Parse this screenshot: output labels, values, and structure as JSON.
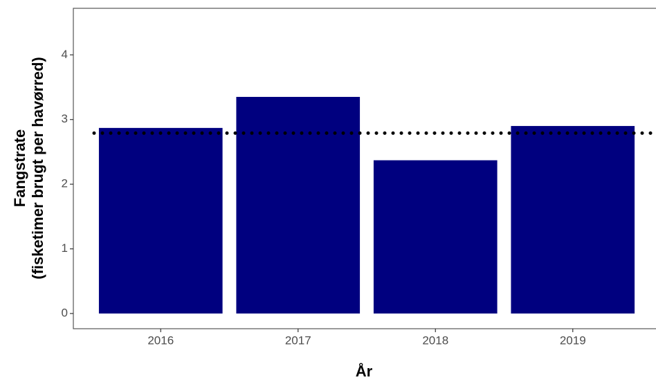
{
  "chart_data": {
    "type": "bar",
    "categories": [
      "2016",
      "2017",
      "2018",
      "2019"
    ],
    "values": [
      2.87,
      3.35,
      2.37,
      2.9
    ],
    "color": "#00007f",
    "reference_line": 2.79,
    "x_label": "År",
    "y_label": [
      "Fangstrate",
      "(fisketimer brugt per havørred)"
    ],
    "ylim": [
      -0.235,
      4.72
    ],
    "yticks": [
      0,
      1,
      2,
      3,
      4
    ],
    "grid": false
  }
}
